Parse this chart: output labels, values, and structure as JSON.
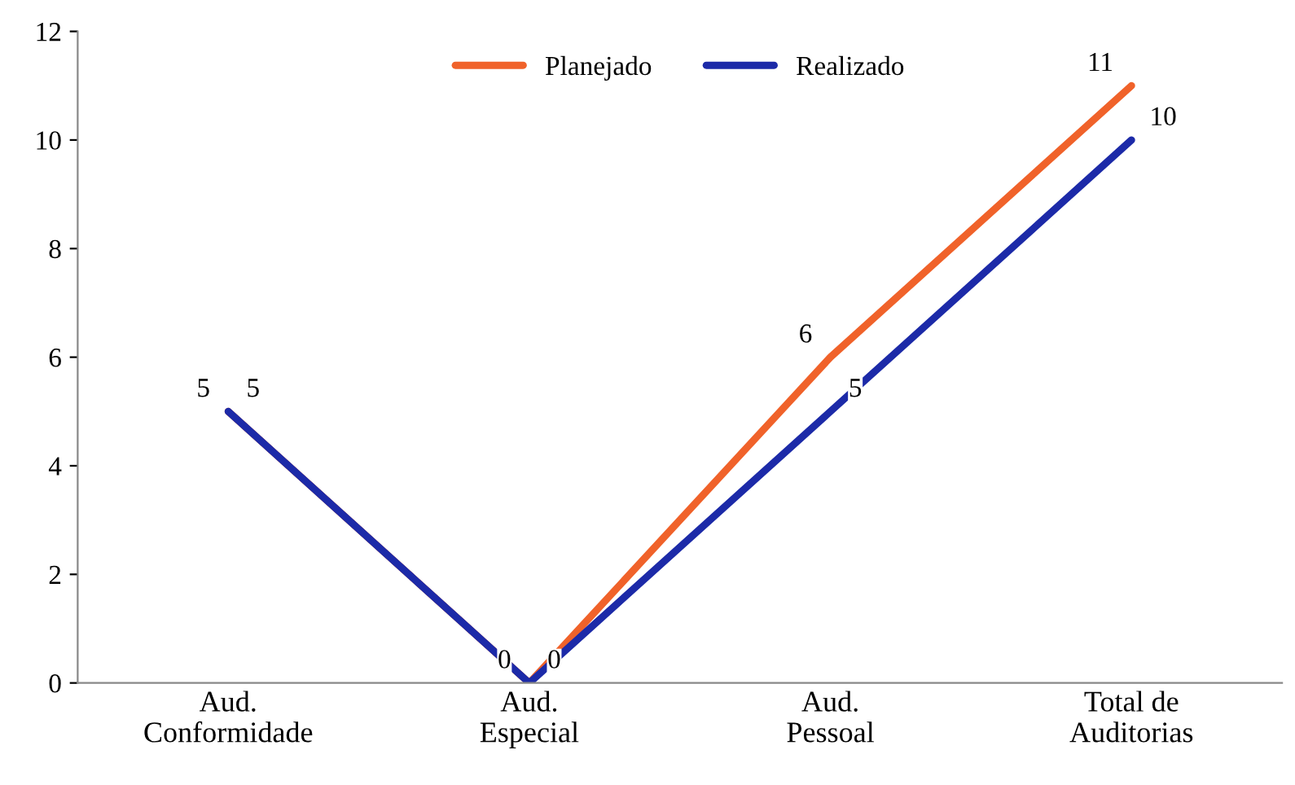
{
  "chart_data": {
    "type": "line",
    "categories": [
      "Aud.\nConformidade",
      "Aud.\nEspecial",
      "Aud.\nPessoal",
      "Total de\nAuditorias"
    ],
    "series": [
      {
        "name": "Planejado",
        "color": "#f0622a",
        "values": [
          5,
          0,
          6,
          11
        ]
      },
      {
        "name": "Realizado",
        "color": "#1c2aa8",
        "values": [
          5,
          0,
          5,
          10
        ]
      }
    ],
    "ylim": [
      0,
      12
    ],
    "yticks": [
      0,
      2,
      4,
      6,
      8,
      10,
      12
    ],
    "grid": false,
    "legend": "top",
    "data_labels": true,
    "marker": "none",
    "line_style": "solid"
  }
}
